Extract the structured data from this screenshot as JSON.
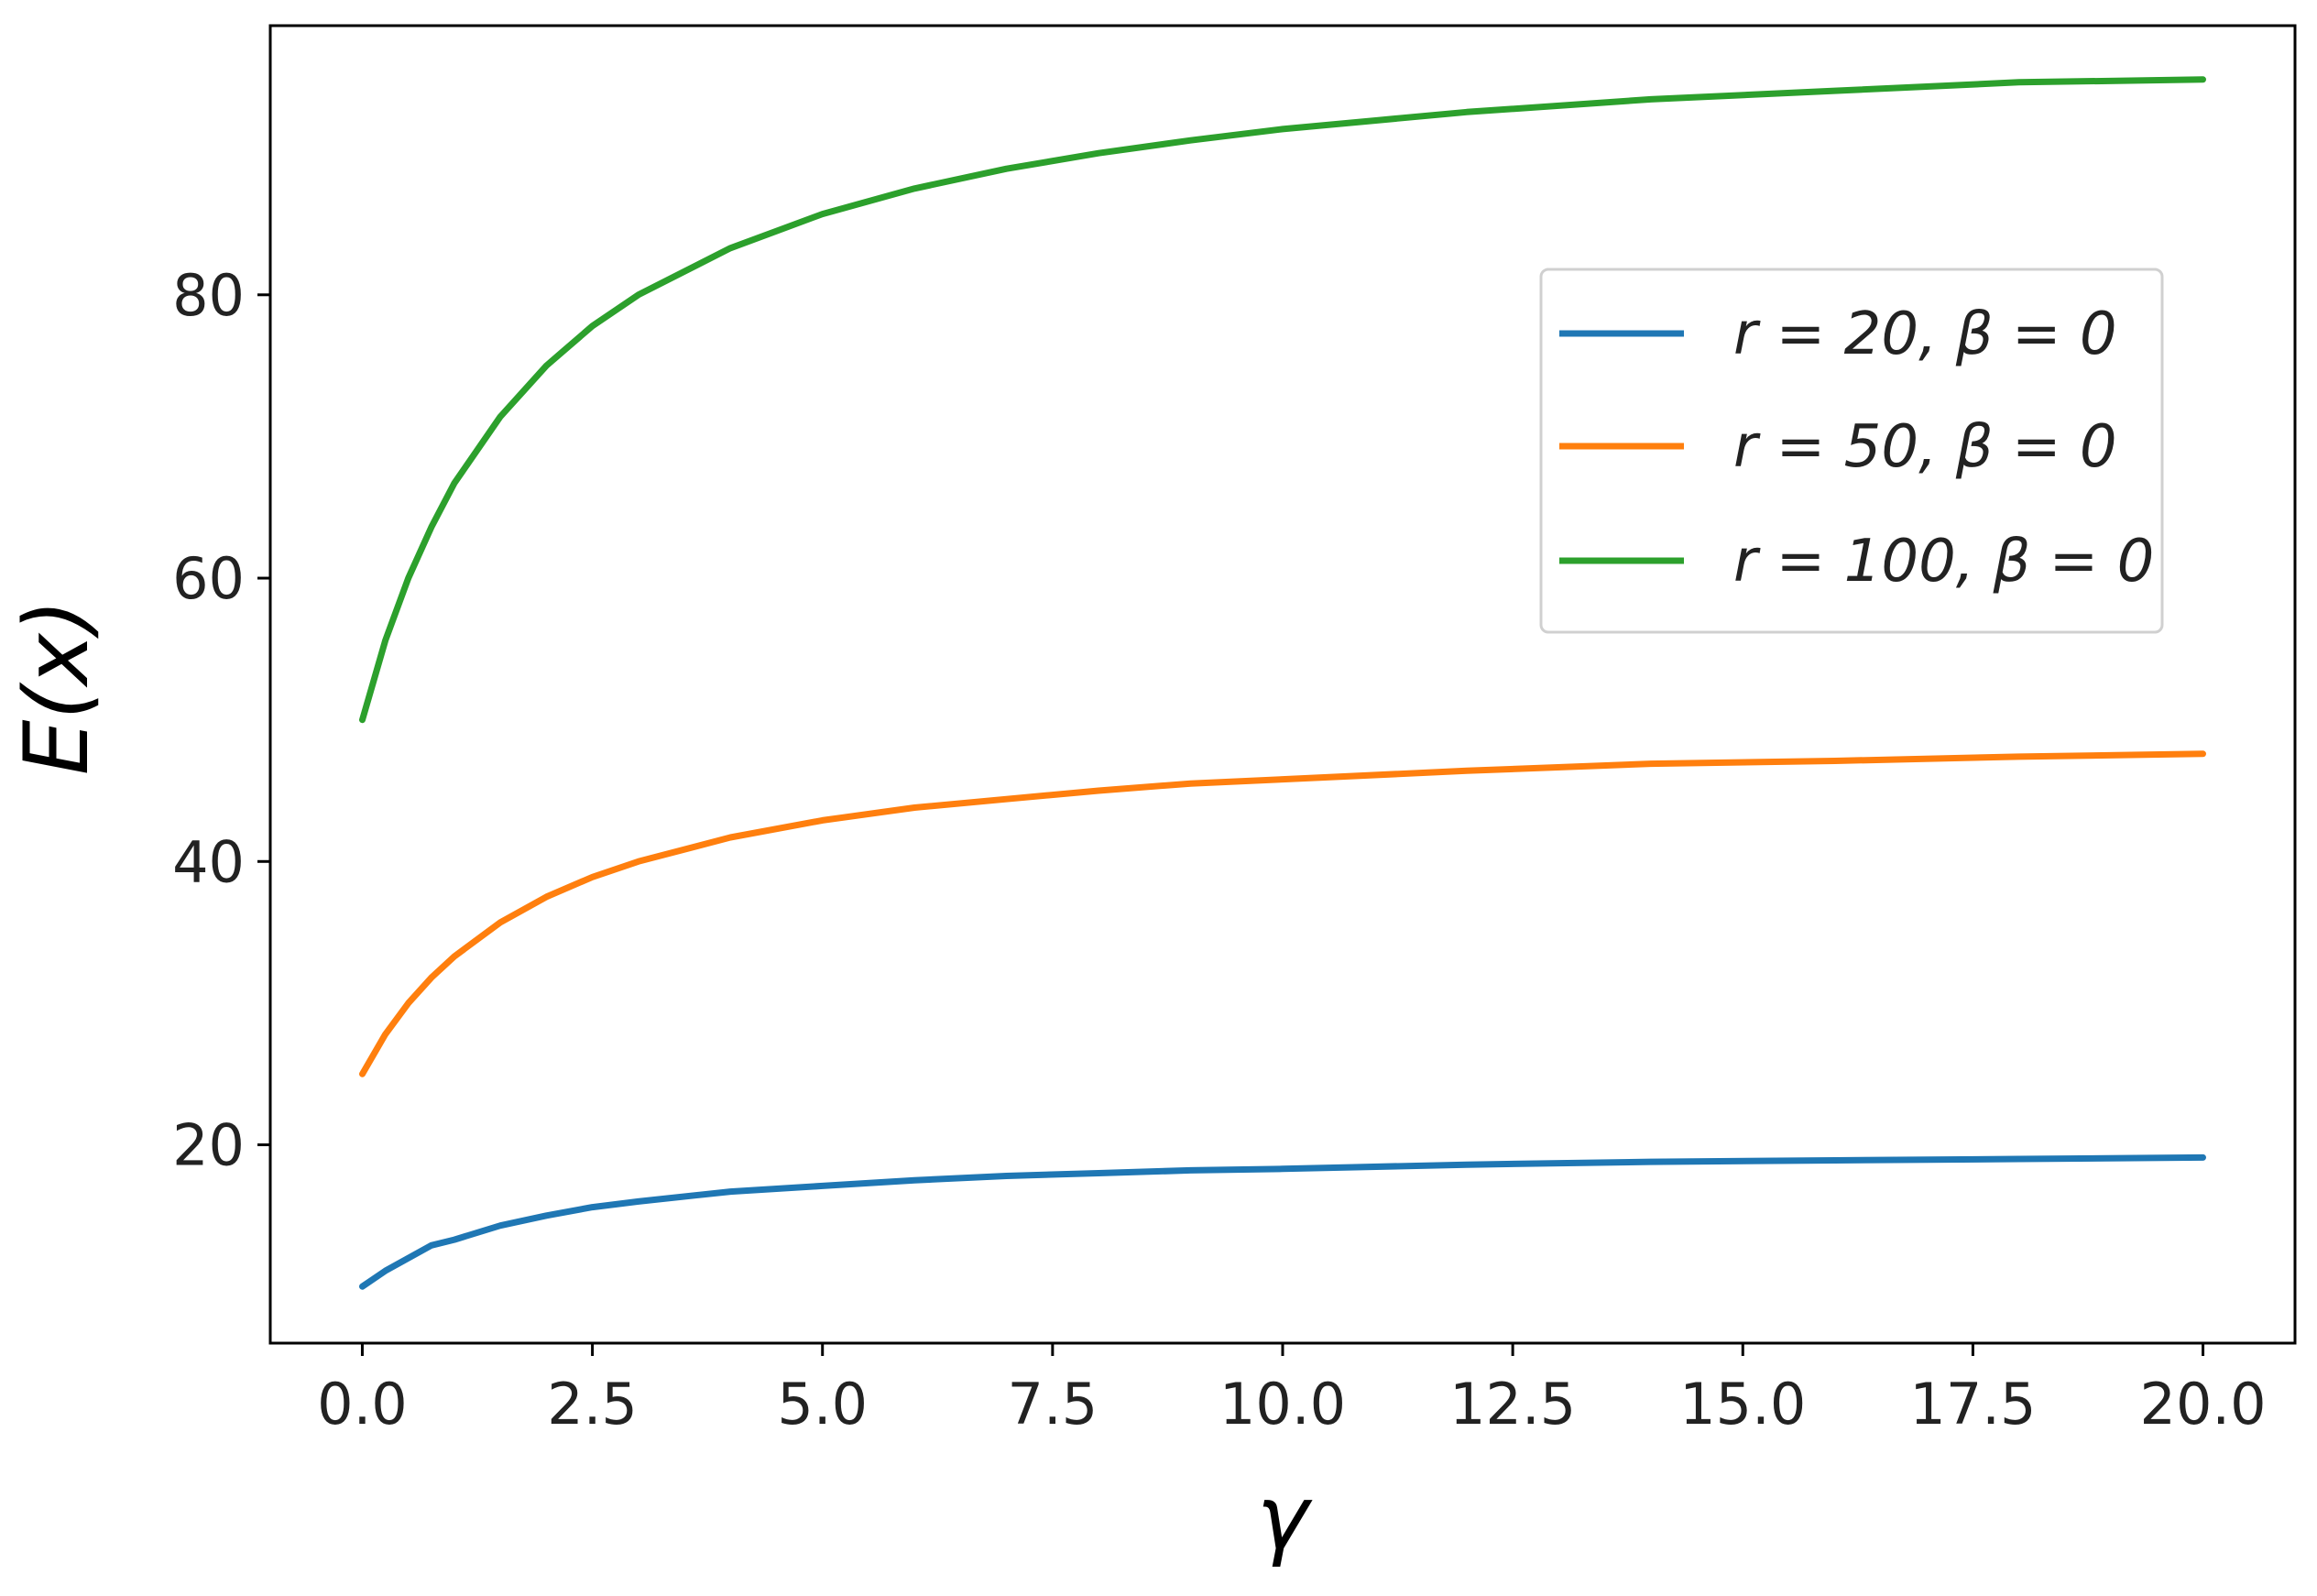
{
  "chart_data": {
    "type": "line",
    "title": "",
    "xlabel": "γ",
    "ylabel": "E(x)",
    "xlim": [
      -1.0,
      21.0
    ],
    "ylim": [
      6.0,
      99.0
    ],
    "xticks": [
      0.0,
      2.5,
      5.0,
      7.5,
      10.0,
      12.5,
      15.0,
      17.5,
      20.0
    ],
    "xtick_labels": [
      "0.0",
      "2.5",
      "5.0",
      "7.5",
      "10.0",
      "12.5",
      "15.0",
      "17.5",
      "20.0"
    ],
    "yticks": [
      20,
      40,
      60,
      80
    ],
    "ytick_labels": [
      "20",
      "40",
      "60",
      "80"
    ],
    "grid": false,
    "legend_position": "upper-right",
    "x": [
      0,
      0.25,
      0.5,
      0.75,
      1,
      1.5,
      2,
      2.5,
      3,
      4,
      5,
      6,
      7,
      8,
      9,
      10,
      12,
      14,
      16,
      18,
      20
    ],
    "series": [
      {
        "name": "r = 20, β = 0",
        "color": "#1f77b4",
        "values": [
          10.0,
          11.1,
          12.0,
          12.9,
          13.3,
          14.3,
          15.0,
          15.6,
          16.0,
          16.7,
          17.1,
          17.5,
          17.8,
          18.0,
          18.2,
          18.3,
          18.6,
          18.8,
          18.9,
          19.0,
          19.1
        ]
      },
      {
        "name": "r = 50, β = 0",
        "color": "#ff7f0e",
        "values": [
          25.0,
          27.8,
          30.0,
          31.8,
          33.3,
          35.7,
          37.5,
          38.9,
          40.0,
          41.7,
          42.9,
          43.8,
          44.4,
          45.0,
          45.5,
          45.8,
          46.4,
          46.9,
          47.1,
          47.4,
          47.6
        ]
      },
      {
        "name": "r = 100, β = 0",
        "color": "#2ca02c",
        "values": [
          50.0,
          55.6,
          60.0,
          63.6,
          66.7,
          71.4,
          75.0,
          77.8,
          80.0,
          83.3,
          85.7,
          87.5,
          88.9,
          90.0,
          90.9,
          91.7,
          92.9,
          93.8,
          94.4,
          95.0,
          95.2
        ]
      }
    ]
  }
}
